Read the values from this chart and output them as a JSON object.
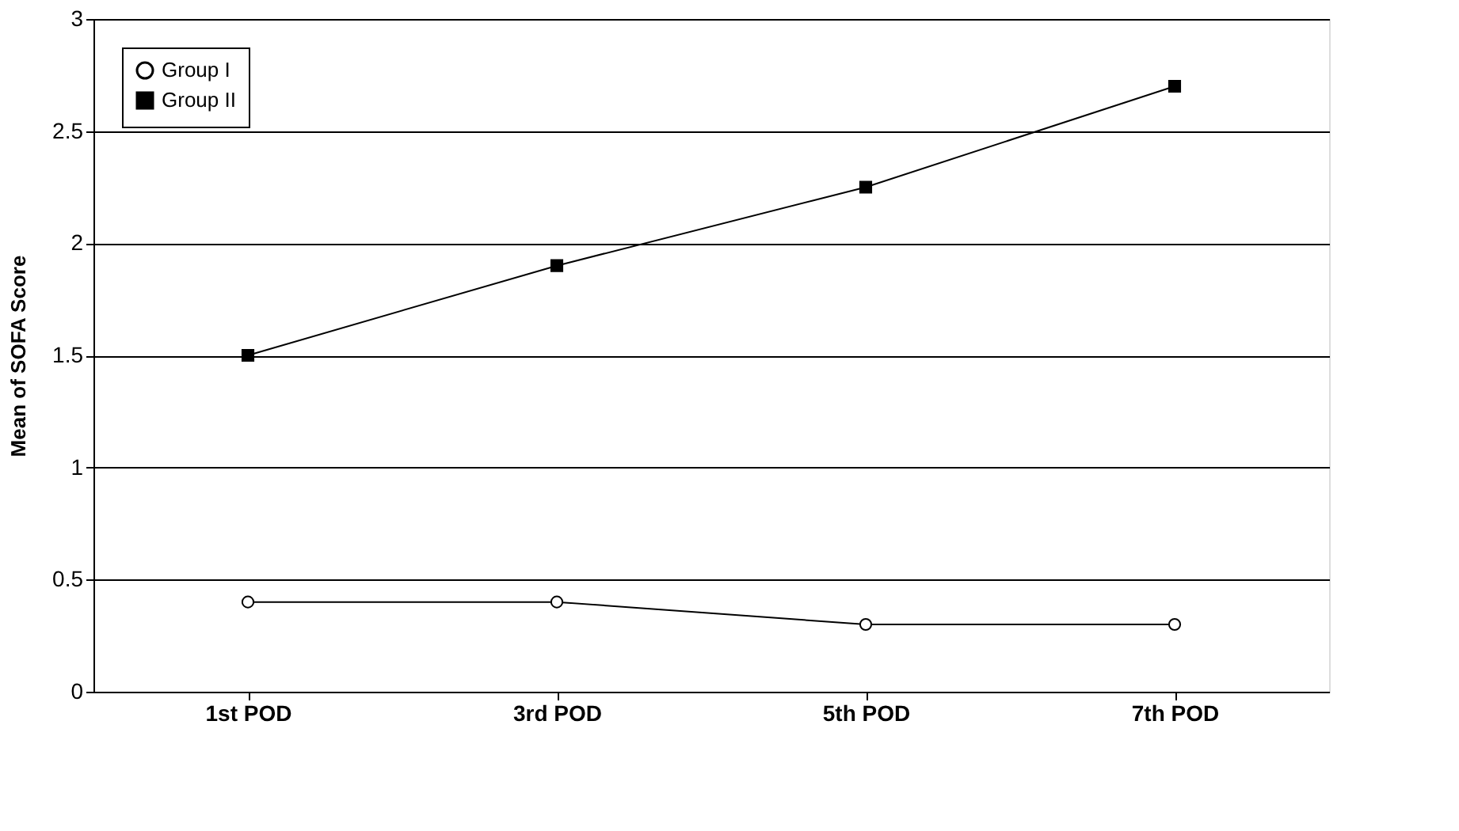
{
  "chart_data": {
    "type": "line",
    "ylabel": "Mean of SOFA Score",
    "categories": [
      "1st POD",
      "3rd POD",
      "5th POD",
      "7th POD"
    ],
    "series": [
      {
        "name": "Group I",
        "color": "#000000",
        "marker": "circle",
        "values": [
          0.4,
          0.4,
          0.3,
          0.3
        ]
      },
      {
        "name": "Group II",
        "color": "#000000",
        "marker": "square",
        "values": [
          1.5,
          1.9,
          2.25,
          2.7
        ]
      }
    ],
    "ylim": [
      0,
      3
    ],
    "yticks": [
      0,
      0.5,
      1,
      1.5,
      2,
      2.5,
      3
    ],
    "grid": "y",
    "legend": "top left",
    "line_style": "solid"
  }
}
